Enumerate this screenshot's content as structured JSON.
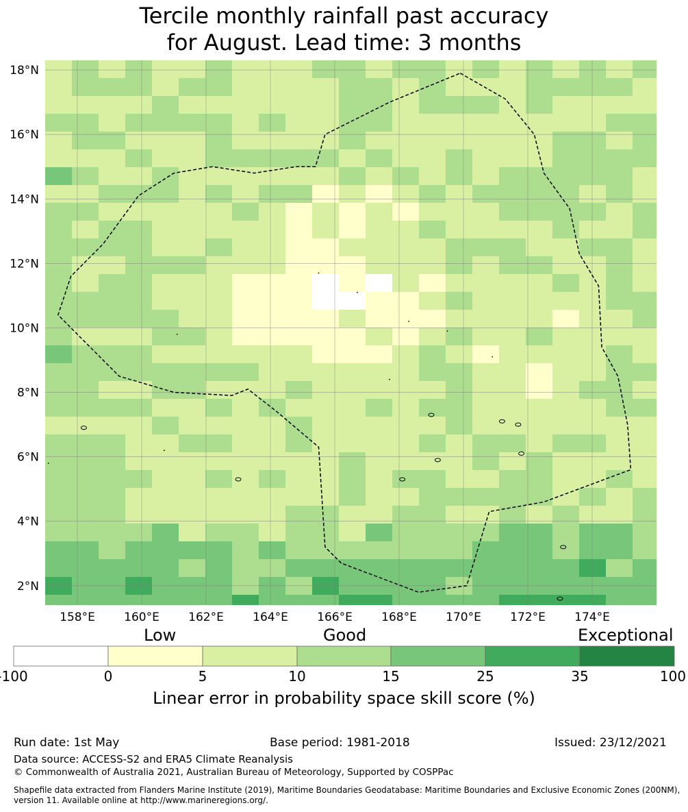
{
  "title": {
    "line1": "Tercile monthly rainfall past accuracy",
    "line2": "for August. Lead time: 3 months"
  },
  "map": {
    "lat_range": [
      1.4,
      18.3
    ],
    "lon_range": [
      157.0,
      176.0
    ],
    "lat_ticks": [
      "18°N",
      "16°N",
      "14°N",
      "12°N",
      "10°N",
      "8°N",
      "6°N",
      "4°N",
      "2°N"
    ],
    "lat_tick_values": [
      18,
      16,
      14,
      12,
      10,
      8,
      6,
      4,
      2
    ],
    "lon_ticks": [
      "158°E",
      "160°E",
      "162°E",
      "164°E",
      "166°E",
      "168°E",
      "170°E",
      "172°E",
      "174°E"
    ],
    "lon_tick_values": [
      158,
      160,
      162,
      164,
      166,
      168,
      170,
      172,
      174
    ],
    "grid_cell_deg": 0.55,
    "boundary_lonlat": [
      [
        169.9,
        17.9
      ],
      [
        171.3,
        17.1
      ],
      [
        172.2,
        16.0
      ],
      [
        172.5,
        14.8
      ],
      [
        173.3,
        13.7
      ],
      [
        173.6,
        12.3
      ],
      [
        174.2,
        11.3
      ],
      [
        174.3,
        9.4
      ],
      [
        174.8,
        8.5
      ],
      [
        175.1,
        7.0
      ],
      [
        175.2,
        5.6
      ],
      [
        172.5,
        4.6
      ],
      [
        170.8,
        4.3
      ],
      [
        170.1,
        2.0
      ],
      [
        168.6,
        1.8
      ],
      [
        166.2,
        2.7
      ],
      [
        165.7,
        3.2
      ],
      [
        165.5,
        6.3
      ],
      [
        164.2,
        7.4
      ],
      [
        163.3,
        8.1
      ],
      [
        162.8,
        7.9
      ],
      [
        161.0,
        8.0
      ],
      [
        159.3,
        8.5
      ],
      [
        158.2,
        9.6
      ],
      [
        157.4,
        10.4
      ],
      [
        157.8,
        11.6
      ],
      [
        158.8,
        12.6
      ],
      [
        159.9,
        14.1
      ],
      [
        161.0,
        14.8
      ],
      [
        162.2,
        15.0
      ],
      [
        163.5,
        14.8
      ],
      [
        164.8,
        15.0
      ],
      [
        165.4,
        15.0
      ],
      [
        165.7,
        16.0
      ],
      [
        167.7,
        17.0
      ],
      [
        169.9,
        17.9
      ]
    ]
  },
  "colorbar": {
    "categories": [
      "Low",
      "Good",
      "Exceptional"
    ],
    "ticks": [
      "-100",
      "0",
      "5",
      "10",
      "15",
      "25",
      "35",
      "100"
    ],
    "colors": [
      "#ffffff",
      "#ffffcc",
      "#d9f0a3",
      "#addd8e",
      "#78c679",
      "#41ab5d",
      "#238443"
    ],
    "label": "Linear error in probability space skill score (%)"
  },
  "footer": {
    "run_date": "Run date: 1st May",
    "base_period": "Base period: 1981-2018",
    "issued": "Issued: 23/12/2021",
    "data_source": "Data source: ACCESS-S2 and ERA5 Climate Reanalysis",
    "copyright": "© Commonwealth of Australia 2021, Australian Bureau of Meteorology, Supported by COSPPac",
    "shapefile_line1": "Shapefile data extracted from Flanders Marine Institute (2019), Maritime Boundaries Geodatabase: Maritime Boundaries and Exclusive Economic Zones (200NM),",
    "shapefile_line2": "version 11. Available online at http://www.marineregions.org/."
  }
}
